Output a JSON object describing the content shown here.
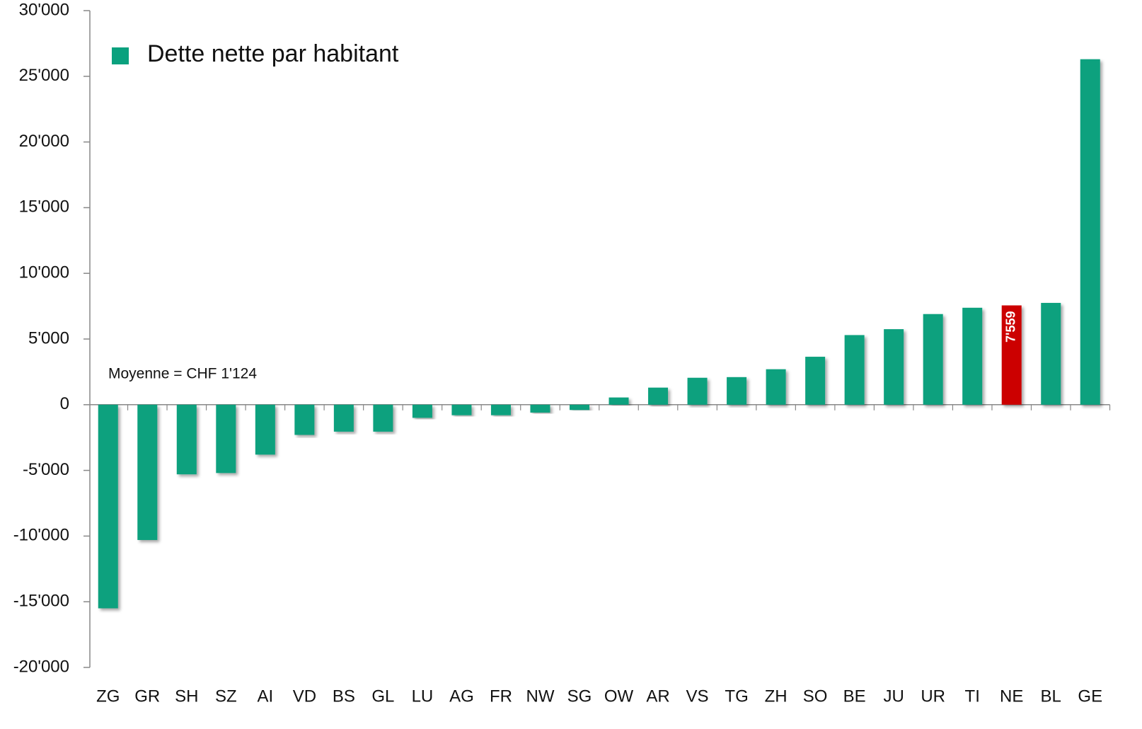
{
  "chart_data": {
    "type": "bar",
    "legend": "Dette nette par habitant",
    "categories": [
      "ZG",
      "GR",
      "SH",
      "SZ",
      "AI",
      "VD",
      "BS",
      "GL",
      "LU",
      "AG",
      "FR",
      "NW",
      "SG",
      "OW",
      "AR",
      "VS",
      "TG",
      "ZH",
      "SO",
      "BE",
      "JU",
      "UR",
      "TI",
      "NE",
      "BL",
      "GE"
    ],
    "values": [
      -15500,
      -10300,
      -5300,
      -5200,
      -3800,
      -2300,
      -2050,
      -2050,
      -1000,
      -800,
      -800,
      -600,
      -400,
      550,
      1300,
      2050,
      2100,
      2700,
      3650,
      5300,
      5750,
      6900,
      7380,
      7559,
      7750,
      26300
    ],
    "value_labels": [
      null,
      null,
      null,
      null,
      null,
      null,
      null,
      null,
      null,
      null,
      null,
      null,
      null,
      null,
      null,
      null,
      null,
      null,
      null,
      null,
      null,
      null,
      null,
      "7'559",
      null,
      null
    ],
    "colors": [
      "#0aa17e",
      "#0aa17e",
      "#0aa17e",
      "#0aa17e",
      "#0aa17e",
      "#0aa17e",
      "#0aa17e",
      "#0aa17e",
      "#0aa17e",
      "#0aa17e",
      "#0aa17e",
      "#0aa17e",
      "#0aa17e",
      "#0aa17e",
      "#0aa17e",
      "#0aa17e",
      "#0aa17e",
      "#0aa17e",
      "#0aa17e",
      "#0aa17e",
      "#0aa17e",
      "#0aa17e",
      "#0aa17e",
      "#cc0000",
      "#0aa17e",
      "#0aa17e"
    ],
    "legend_color": "#0aa17e",
    "mean": {
      "value": 1124,
      "label": "Moyenne = CHF 1'124"
    },
    "mean_color": "#0b8e6e",
    "ylim": [
      -20000,
      30000
    ],
    "yticks": [
      {
        "value": -20000,
        "label": "-20'000"
      },
      {
        "value": -15000,
        "label": "-15'000"
      },
      {
        "value": -10000,
        "label": "-10'000"
      },
      {
        "value": -5000,
        "label": "-5'000"
      },
      0,
      {
        "value": 5000,
        "label": "5'000"
      },
      {
        "value": 10000,
        "label": "10'000"
      },
      {
        "value": 15000,
        "label": "15'000"
      },
      {
        "value": 20000,
        "label": "20'000"
      },
      {
        "value": 25000,
        "label": "25'000"
      },
      {
        "value": 30000,
        "label": "30'000"
      }
    ],
    "grid": false
  }
}
